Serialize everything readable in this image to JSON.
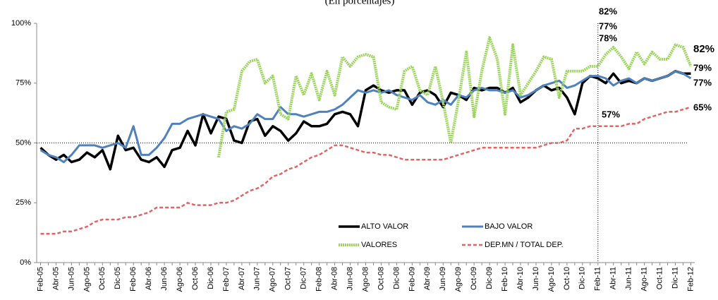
{
  "chart_data": {
    "type": "line",
    "title": "(En porcentajes)",
    "categories": [
      "Feb-05",
      null,
      "Abr-05",
      null,
      "Jun-05",
      null,
      "Ago-05",
      null,
      "Oct-05",
      null,
      "Dic-05",
      null,
      "Feb-06",
      null,
      "Abr-06",
      null,
      "Jun-06",
      null,
      "Ago-06",
      null,
      "Oct-06",
      null,
      "Dic-06",
      null,
      "Feb-07",
      null,
      "Abr-07",
      null,
      "Jun-07",
      null,
      "Ago-07",
      null,
      "Oct-07",
      null,
      "Dic-07",
      null,
      "Feb-08",
      null,
      "Abr-08",
      null,
      "Jun-08",
      null,
      "Ago-08",
      null,
      "Oct-08",
      null,
      "Dic-08",
      null,
      "Feb-09",
      null,
      "Abr-09",
      null,
      "Jun-09",
      null,
      "Ago-09",
      null,
      "Oct-09",
      null,
      "Dic-09",
      null,
      "Feb-10",
      null,
      "Abr-10",
      null,
      "Jun-10",
      null,
      "Ago-10",
      null,
      "Oct-10",
      null,
      "Dic-10",
      null,
      "Feb-11",
      null,
      "Abr-11",
      null,
      "Jun-11",
      null,
      "Ago-11",
      null,
      "Oct-11",
      null,
      "Dic-11",
      null,
      "Feb-12"
    ],
    "series": [
      {
        "name": "ALTO VALOR",
        "color": "#000000",
        "values": [
          48,
          45,
          43,
          45,
          42,
          43,
          46,
          44,
          47,
          39,
          53,
          47,
          48,
          43,
          42,
          44,
          40,
          47,
          48,
          55,
          49,
          62,
          54,
          61,
          60,
          51,
          50,
          59,
          60,
          53,
          57,
          55,
          51,
          54,
          59,
          57,
          57,
          58,
          62,
          63,
          62,
          57,
          72,
          74,
          72,
          71,
          72,
          72,
          66,
          71,
          72,
          70,
          65,
          71,
          70,
          68,
          73,
          72,
          73,
          73,
          71,
          73,
          67,
          69,
          72,
          74,
          72,
          73,
          69,
          62,
          75,
          78,
          77,
          75,
          79,
          75,
          76,
          75,
          77,
          76,
          77,
          78,
          80,
          79,
          79
        ]
      },
      {
        "name": "BAJO VALOR",
        "color": "#4f81bd",
        "values": [
          47,
          45,
          44,
          42,
          45,
          49,
          49,
          49,
          48,
          49,
          50,
          48,
          57,
          45,
          45,
          48,
          52,
          58,
          58,
          60,
          61,
          62,
          61,
          60,
          55,
          57,
          56,
          58,
          62,
          60,
          60,
          65,
          62,
          62,
          61,
          62,
          63,
          63,
          64,
          66,
          69,
          72,
          71,
          72,
          71,
          72,
          70,
          69,
          68,
          70,
          67,
          66,
          68,
          66,
          70,
          69,
          72,
          73,
          72,
          72,
          71,
          72,
          69,
          70,
          72,
          74,
          75,
          76,
          73,
          74,
          76,
          78,
          78,
          77,
          74,
          76,
          77,
          75,
          77,
          76,
          77,
          78,
          80,
          79,
          77
        ]
      },
      {
        "name": "VALORES",
        "color": "#9bd45b",
        "values": [
          null,
          null,
          null,
          null,
          null,
          null,
          null,
          null,
          null,
          null,
          null,
          null,
          null,
          null,
          null,
          null,
          null,
          null,
          null,
          null,
          null,
          null,
          null,
          44,
          63,
          64,
          80,
          84,
          85,
          75,
          78,
          62,
          60,
          78,
          70,
          79,
          68,
          80,
          70,
          86,
          82,
          86,
          87,
          86,
          67,
          65,
          64,
          80,
          82,
          72,
          70,
          82,
          67,
          50,
          68,
          88,
          61,
          80,
          94,
          85,
          62,
          91,
          70,
          75,
          80,
          86,
          85,
          69,
          80,
          80,
          80,
          82,
          82,
          87,
          90,
          86,
          81,
          88,
          83,
          88,
          85,
          85,
          91,
          90,
          82
        ]
      },
      {
        "name": "DEP.MN / TOTAL DEP.",
        "color": "#e06666",
        "values": [
          12,
          12,
          12,
          13,
          13,
          14,
          15,
          17,
          18,
          18,
          18,
          19,
          19,
          20,
          21,
          23,
          23,
          23,
          23,
          25,
          24,
          24,
          24,
          25,
          25,
          26,
          28,
          30,
          31,
          33,
          36,
          37,
          39,
          40,
          42,
          44,
          45,
          47,
          49,
          49,
          48,
          47,
          46,
          46,
          45,
          45,
          44,
          43,
          43,
          43,
          43,
          43,
          43,
          44,
          45,
          46,
          47,
          48,
          48,
          48,
          48,
          48,
          48,
          48,
          48,
          49,
          50,
          50,
          51,
          56,
          56,
          57,
          57,
          57,
          57,
          57,
          58,
          58,
          60,
          61,
          62,
          63,
          63,
          64,
          65
        ]
      }
    ],
    "ylim": [
      0,
      100
    ],
    "yticks": [
      {
        "value": 0,
        "label": "0%"
      },
      {
        "value": 25,
        "label": "25%"
      },
      {
        "value": 50,
        "label": "50%"
      },
      {
        "value": 75,
        "label": "75%"
      },
      {
        "value": 100,
        "label": "100%"
      }
    ],
    "hline": 50,
    "vline": "Feb-11",
    "legend": "lower center",
    "annotations": [
      {
        "label": "82%",
        "color": "#00b050"
      },
      {
        "label": "77%",
        "color": "#000000"
      },
      {
        "label": "78%",
        "color": "#558ed5"
      },
      {
        "label": "57%",
        "color": "#c00000"
      },
      {
        "label": "82%",
        "color": "#00b050"
      },
      {
        "label": "79%",
        "color": "#000000"
      },
      {
        "label": "77%",
        "color": "#558ed5"
      },
      {
        "label": "65%",
        "color": "#c00000"
      }
    ]
  }
}
